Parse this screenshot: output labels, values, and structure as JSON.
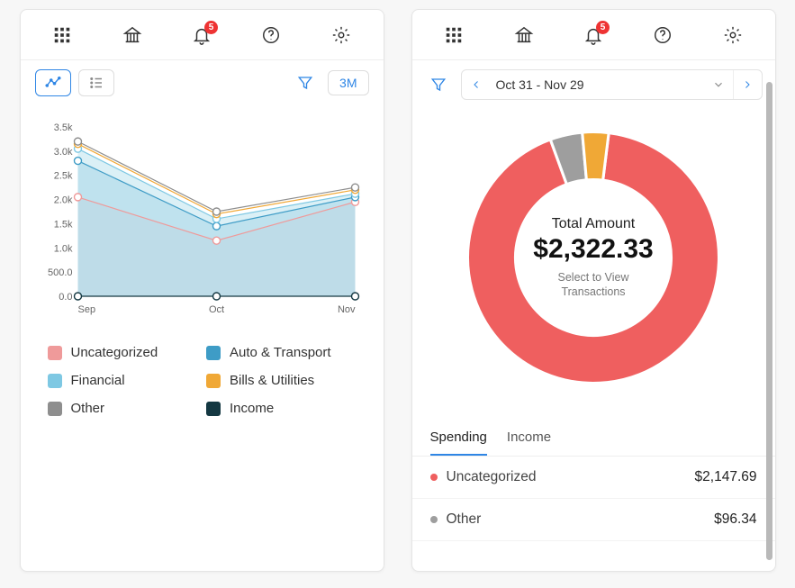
{
  "notification_count": "5",
  "left": {
    "range_label": "3M",
    "chart": {
      "type": "area + line",
      "x_categories": [
        "Sep",
        "Oct",
        "Nov"
      ],
      "y_ticks": [
        "0.0",
        "500.0",
        "1.0k",
        "1.5k",
        "2.0k",
        "2.5k",
        "3.0k",
        "3.5k"
      ],
      "ylim": [
        0,
        3500
      ],
      "marker": "circle",
      "marker_size": 4,
      "line_width": 1.2,
      "fill_opacity": 0.55,
      "series": [
        {
          "key": "uncategorized",
          "label": "Uncategorized",
          "color": "#ef9a9a",
          "fill": "#f8c7c7",
          "values": [
            2050,
            1150,
            1950
          ]
        },
        {
          "key": "auto_transport",
          "label": "Auto & Transport",
          "color": "#3e9cc6",
          "fill": "#8ec9de",
          "values": [
            2800,
            1450,
            2050
          ]
        },
        {
          "key": "financial",
          "label": "Financial",
          "color": "#7ec8e3",
          "fill": "#bde3ef",
          "values": [
            3050,
            1600,
            2120
          ]
        },
        {
          "key": "bills_utilities",
          "label": "Bills & Utilities",
          "color": "#f0a836",
          "fill": "none",
          "values": [
            3150,
            1700,
            2200
          ]
        },
        {
          "key": "other",
          "label": "Other",
          "color": "#8e8e8e",
          "fill": "none",
          "values": [
            3200,
            1750,
            2250
          ]
        },
        {
          "key": "income",
          "label": "Income",
          "color": "#143842",
          "fill": "none",
          "values": [
            0,
            0,
            0
          ]
        }
      ]
    }
  },
  "right": {
    "date_range": "Oct 31 - Nov 29",
    "donut": {
      "center_title": "Total Amount",
      "center_amount": "$2,322.33",
      "center_sub1": "Select to View",
      "center_sub2": "Transactions",
      "inner_radius_ratio": 0.62,
      "slices": [
        {
          "key": "uncategorized",
          "color": "#ef5f5f",
          "value": 2147.69
        },
        {
          "key": "other",
          "color": "#9e9e9e",
          "value": 96.34
        },
        {
          "key": "bills",
          "color": "#f0a836",
          "value": 78.3
        }
      ]
    },
    "tabs": {
      "spending": "Spending",
      "income": "Income",
      "active": "spending"
    },
    "transactions": [
      {
        "dot": "#ef5f5f",
        "name": "Uncategorized",
        "amount": "$2,147.69"
      },
      {
        "dot": "#9e9e9e",
        "name": "Other",
        "amount": "$96.34"
      }
    ]
  }
}
